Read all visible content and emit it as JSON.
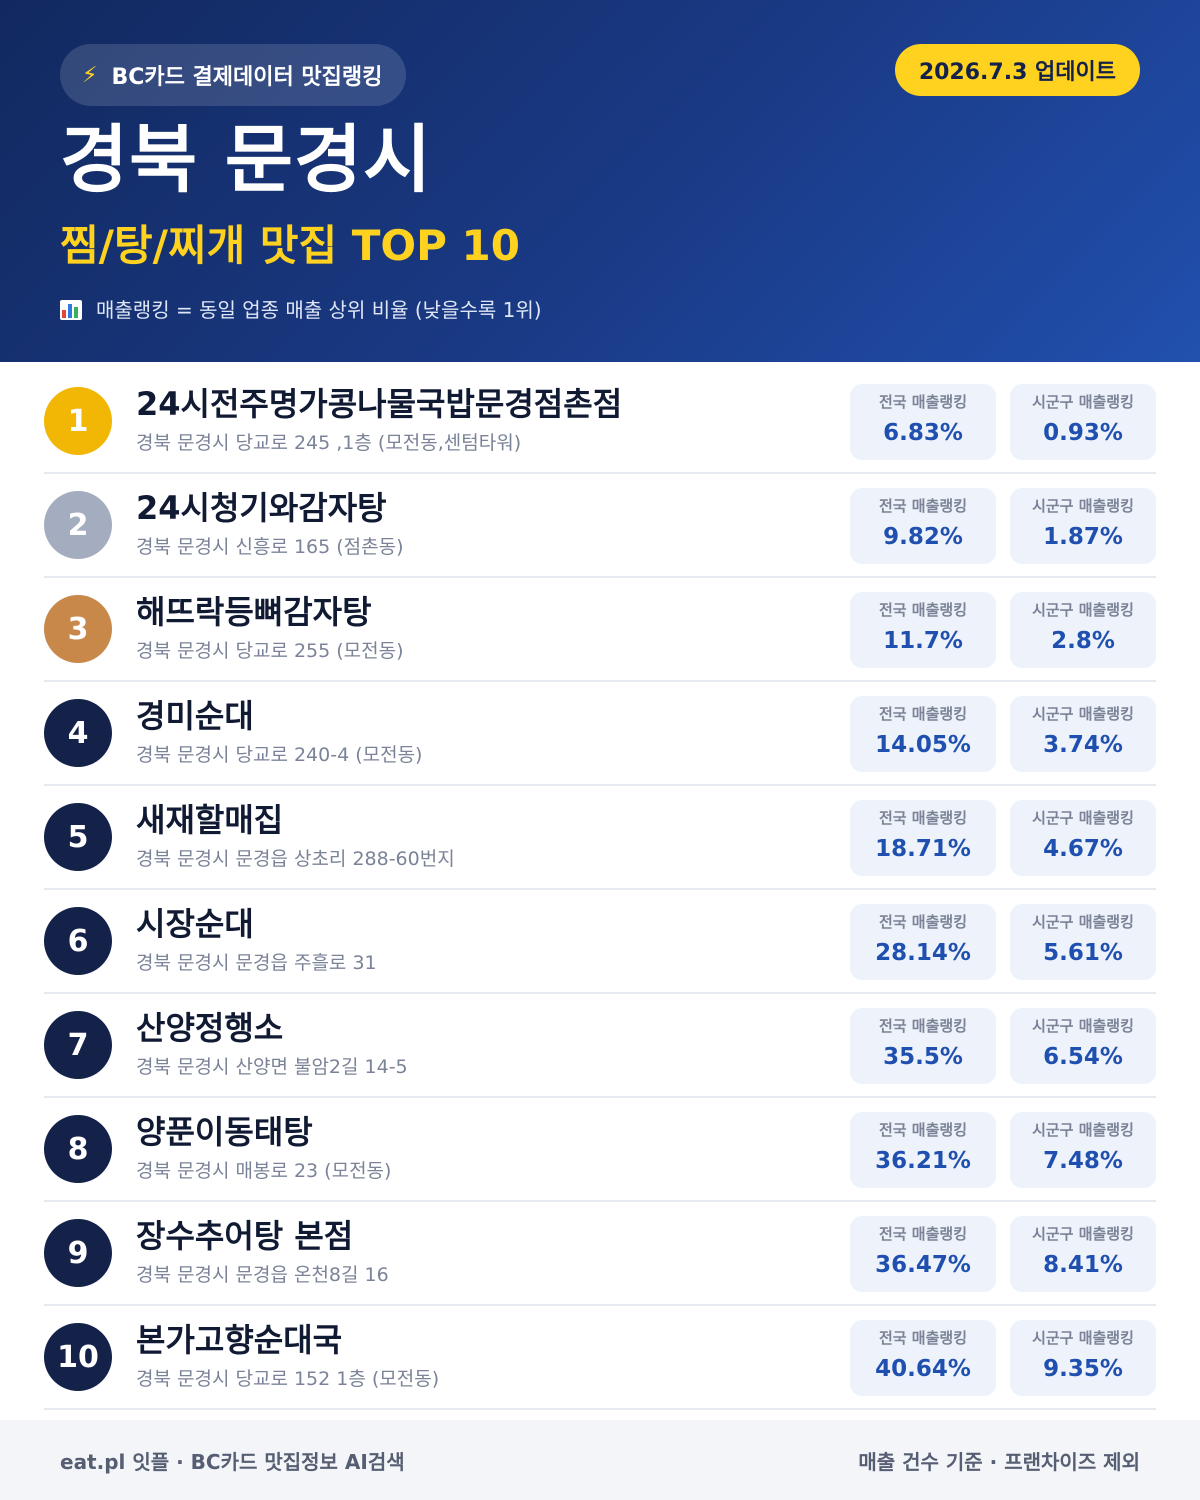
{
  "header": {
    "source_label": "BC카드 결제데이터 맛집랭킹",
    "source_icon": "lightning-bolt-icon",
    "update_label": "2026.7.3 업데이트",
    "region": "경북 문경시",
    "category": "찜/탕/찌개 맛집 TOP 10",
    "note_icon": "bar-chart-icon",
    "note": "매출랭킹 = 동일 업종 매출 상위 비율 (낮을수록 1위)"
  },
  "colors": {
    "header_dark": "#12295f",
    "header_light": "#2150ae",
    "accent_yellow": "#ffd21f",
    "gold": "#f2b705",
    "silver": "#a4adc0",
    "bronze": "#c8884a",
    "navy": "#14224a",
    "value_blue": "#1f50b0"
  },
  "labels": {
    "national": "전국 매출랭킹",
    "district": "시군구 매출랭킹"
  },
  "items": [
    {
      "rank": "1",
      "name": "24시전주명가콩나물국밥문경점촌점",
      "address": "경북 문경시 당교로 245 ,1층 (모전동,센텀타워)",
      "national": "6.83%",
      "district": "0.93%"
    },
    {
      "rank": "2",
      "name": "24시청기와감자탕",
      "address": "경북 문경시 신흥로 165 (점촌동)",
      "national": "9.82%",
      "district": "1.87%"
    },
    {
      "rank": "3",
      "name": "해뜨락등뼈감자탕",
      "address": "경북 문경시 당교로 255 (모전동)",
      "national": "11.7%",
      "district": "2.8%"
    },
    {
      "rank": "4",
      "name": "경미순대",
      "address": "경북 문경시 당교로 240-4 (모전동)",
      "national": "14.05%",
      "district": "3.74%"
    },
    {
      "rank": "5",
      "name": "새재할매집",
      "address": "경북 문경시 문경읍 상초리 288-60번지",
      "national": "18.71%",
      "district": "4.67%"
    },
    {
      "rank": "6",
      "name": "시장순대",
      "address": "경북 문경시 문경읍 주흘로 31",
      "national": "28.14%",
      "district": "5.61%"
    },
    {
      "rank": "7",
      "name": "산양정행소",
      "address": "경북 문경시 산양면 불암2길 14-5",
      "national": "35.5%",
      "district": "6.54%"
    },
    {
      "rank": "8",
      "name": "양푼이동태탕",
      "address": "경북 문경시 매봉로 23 (모전동)",
      "national": "36.21%",
      "district": "7.48%"
    },
    {
      "rank": "9",
      "name": "장수추어탕 본점",
      "address": "경북 문경시 문경읍 온천8길 16",
      "national": "36.47%",
      "district": "8.41%"
    },
    {
      "rank": "10",
      "name": "본가고향순대국",
      "address": "경북 문경시 당교로 152 1층 (모전동)",
      "national": "40.64%",
      "district": "9.35%"
    }
  ],
  "footer": {
    "left": "eat.pl 잇플 · BC카드 맛집정보 AI검색",
    "right": "매출 건수 기준 · 프랜차이즈 제외"
  }
}
